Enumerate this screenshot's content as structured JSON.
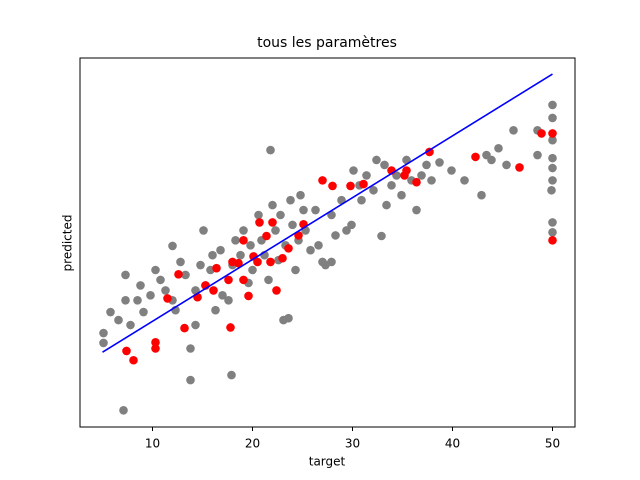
{
  "chart_data": {
    "type": "scatter",
    "title": "tous les paramètres",
    "x_label": "target",
    "y_label": "predicted",
    "xlim": [
      2.75,
      52.25
    ],
    "ylim": [
      -7.1,
      52.6
    ],
    "xticks": [
      10,
      20,
      30,
      40,
      50
    ],
    "series": [
      {
        "color": "#808080",
        "kind": "scatter",
        "x": [
          7.1,
          5.1,
          5.1,
          5.8,
          7.3,
          7.3,
          6.6,
          7.8,
          8.8,
          8.5,
          9.1,
          9.8,
          10.3,
          10.8,
          11.3,
          12.0,
          12.0,
          12.3,
          12.8,
          13.3,
          13.8,
          13.8,
          14.3,
          14.3,
          14.8,
          15.1,
          15.3,
          15.8,
          16.0,
          16.3,
          16.8,
          17.0,
          17.6,
          17.9,
          18.0,
          18.3,
          18.8,
          19.1,
          19.6,
          19.8,
          20.0,
          20.6,
          20.9,
          21.2,
          21.6,
          21.8,
          22.0,
          22.3,
          22.6,
          22.8,
          23.1,
          23.3,
          23.6,
          23.8,
          24.0,
          24.3,
          24.6,
          24.8,
          25.1,
          25.3,
          25.8,
          26.3,
          26.6,
          27.0,
          27.3,
          27.9,
          27.9,
          28.3,
          28.9,
          29.4,
          29.9,
          30.1,
          30.7,
          30.9,
          31.4,
          32.1,
          32.4,
          32.9,
          33.2,
          33.4,
          33.9,
          34.4,
          34.9,
          35.4,
          35.9,
          36.4,
          36.9,
          37.4,
          37.9,
          38.7,
          39.9,
          41.2,
          42.9,
          43.4,
          43.9,
          44.6,
          45.4,
          46.1,
          48.5,
          48.5,
          50,
          50,
          50,
          50,
          50,
          50,
          50,
          50,
          49.9
        ],
        "y": [
          -4.4,
          8.1,
          6.5,
          11.5,
          17.5,
          13.4,
          10.2,
          9.4,
          15.8,
          13.4,
          11.5,
          14.2,
          18.3,
          16.7,
          15.0,
          22.2,
          13.4,
          11.8,
          19.6,
          17.5,
          5.6,
          0.5,
          9.4,
          15.0,
          19.1,
          24.7,
          15.8,
          18.3,
          20.7,
          11.8,
          21.5,
          14.2,
          13.4,
          1.3,
          19.1,
          23.1,
          20.7,
          24.7,
          16.2,
          22.3,
          18.3,
          27.2,
          23.1,
          20.7,
          16.7,
          37.7,
          28.8,
          24.7,
          19.9,
          27.2,
          10.2,
          22.3,
          10.5,
          29.6,
          25.6,
          18.3,
          23.1,
          30.4,
          28.0,
          24.7,
          21.5,
          28.0,
          22.3,
          19.6,
          19.1,
          19.6,
          27.2,
          23.9,
          29.6,
          24.7,
          25.6,
          34.4,
          32.0,
          29.6,
          33.6,
          31.2,
          36.1,
          23.8,
          35.3,
          28.8,
          32.0,
          33.6,
          30.4,
          36.1,
          32.8,
          28.0,
          33.6,
          35.3,
          32.8,
          35.7,
          34.4,
          32.8,
          30.4,
          36.9,
          36.1,
          38.0,
          35.3,
          40.9,
          40.9,
          36.9,
          45.0,
          42.9,
          39.3,
          36.4,
          34.8,
          32.8,
          26.0,
          24.4,
          31.2
        ]
      },
      {
        "color": "#ff0000",
        "kind": "scatter",
        "x": [
          7.4,
          8.1,
          10.3,
          10.3,
          11.5,
          12.6,
          13.2,
          14.5,
          15.3,
          16.1,
          16.4,
          17.6,
          17.8,
          18.0,
          18.6,
          19.1,
          19.1,
          19.6,
          20.1,
          20.5,
          20.7,
          21.4,
          21.8,
          22.0,
          22.4,
          23.0,
          23.6,
          24.6,
          25.1,
          27.0,
          28.0,
          29.8,
          31.1,
          33.9,
          35.2,
          35.4,
          36.4,
          37.7,
          42.3,
          46.7,
          48.9,
          50,
          50
        ],
        "y": [
          5.2,
          3.7,
          6.6,
          5.6,
          13.7,
          17.6,
          8.9,
          13.9,
          15.8,
          15.0,
          18.6,
          16.7,
          9.0,
          19.6,
          19.4,
          16.7,
          23.1,
          14.1,
          20.5,
          19.6,
          26.0,
          23.8,
          19.6,
          26.0,
          15.0,
          20.2,
          21.8,
          23.9,
          25.7,
          32.8,
          31.9,
          31.9,
          32.2,
          34.4,
          33.6,
          34.4,
          32.5,
          37.4,
          36.6,
          34.9,
          40.4,
          40.4,
          23.1
        ]
      },
      {
        "color": "#0000ff",
        "kind": "line",
        "x": [
          5,
          50
        ],
        "y": [
          5,
          50
        ]
      }
    ]
  }
}
